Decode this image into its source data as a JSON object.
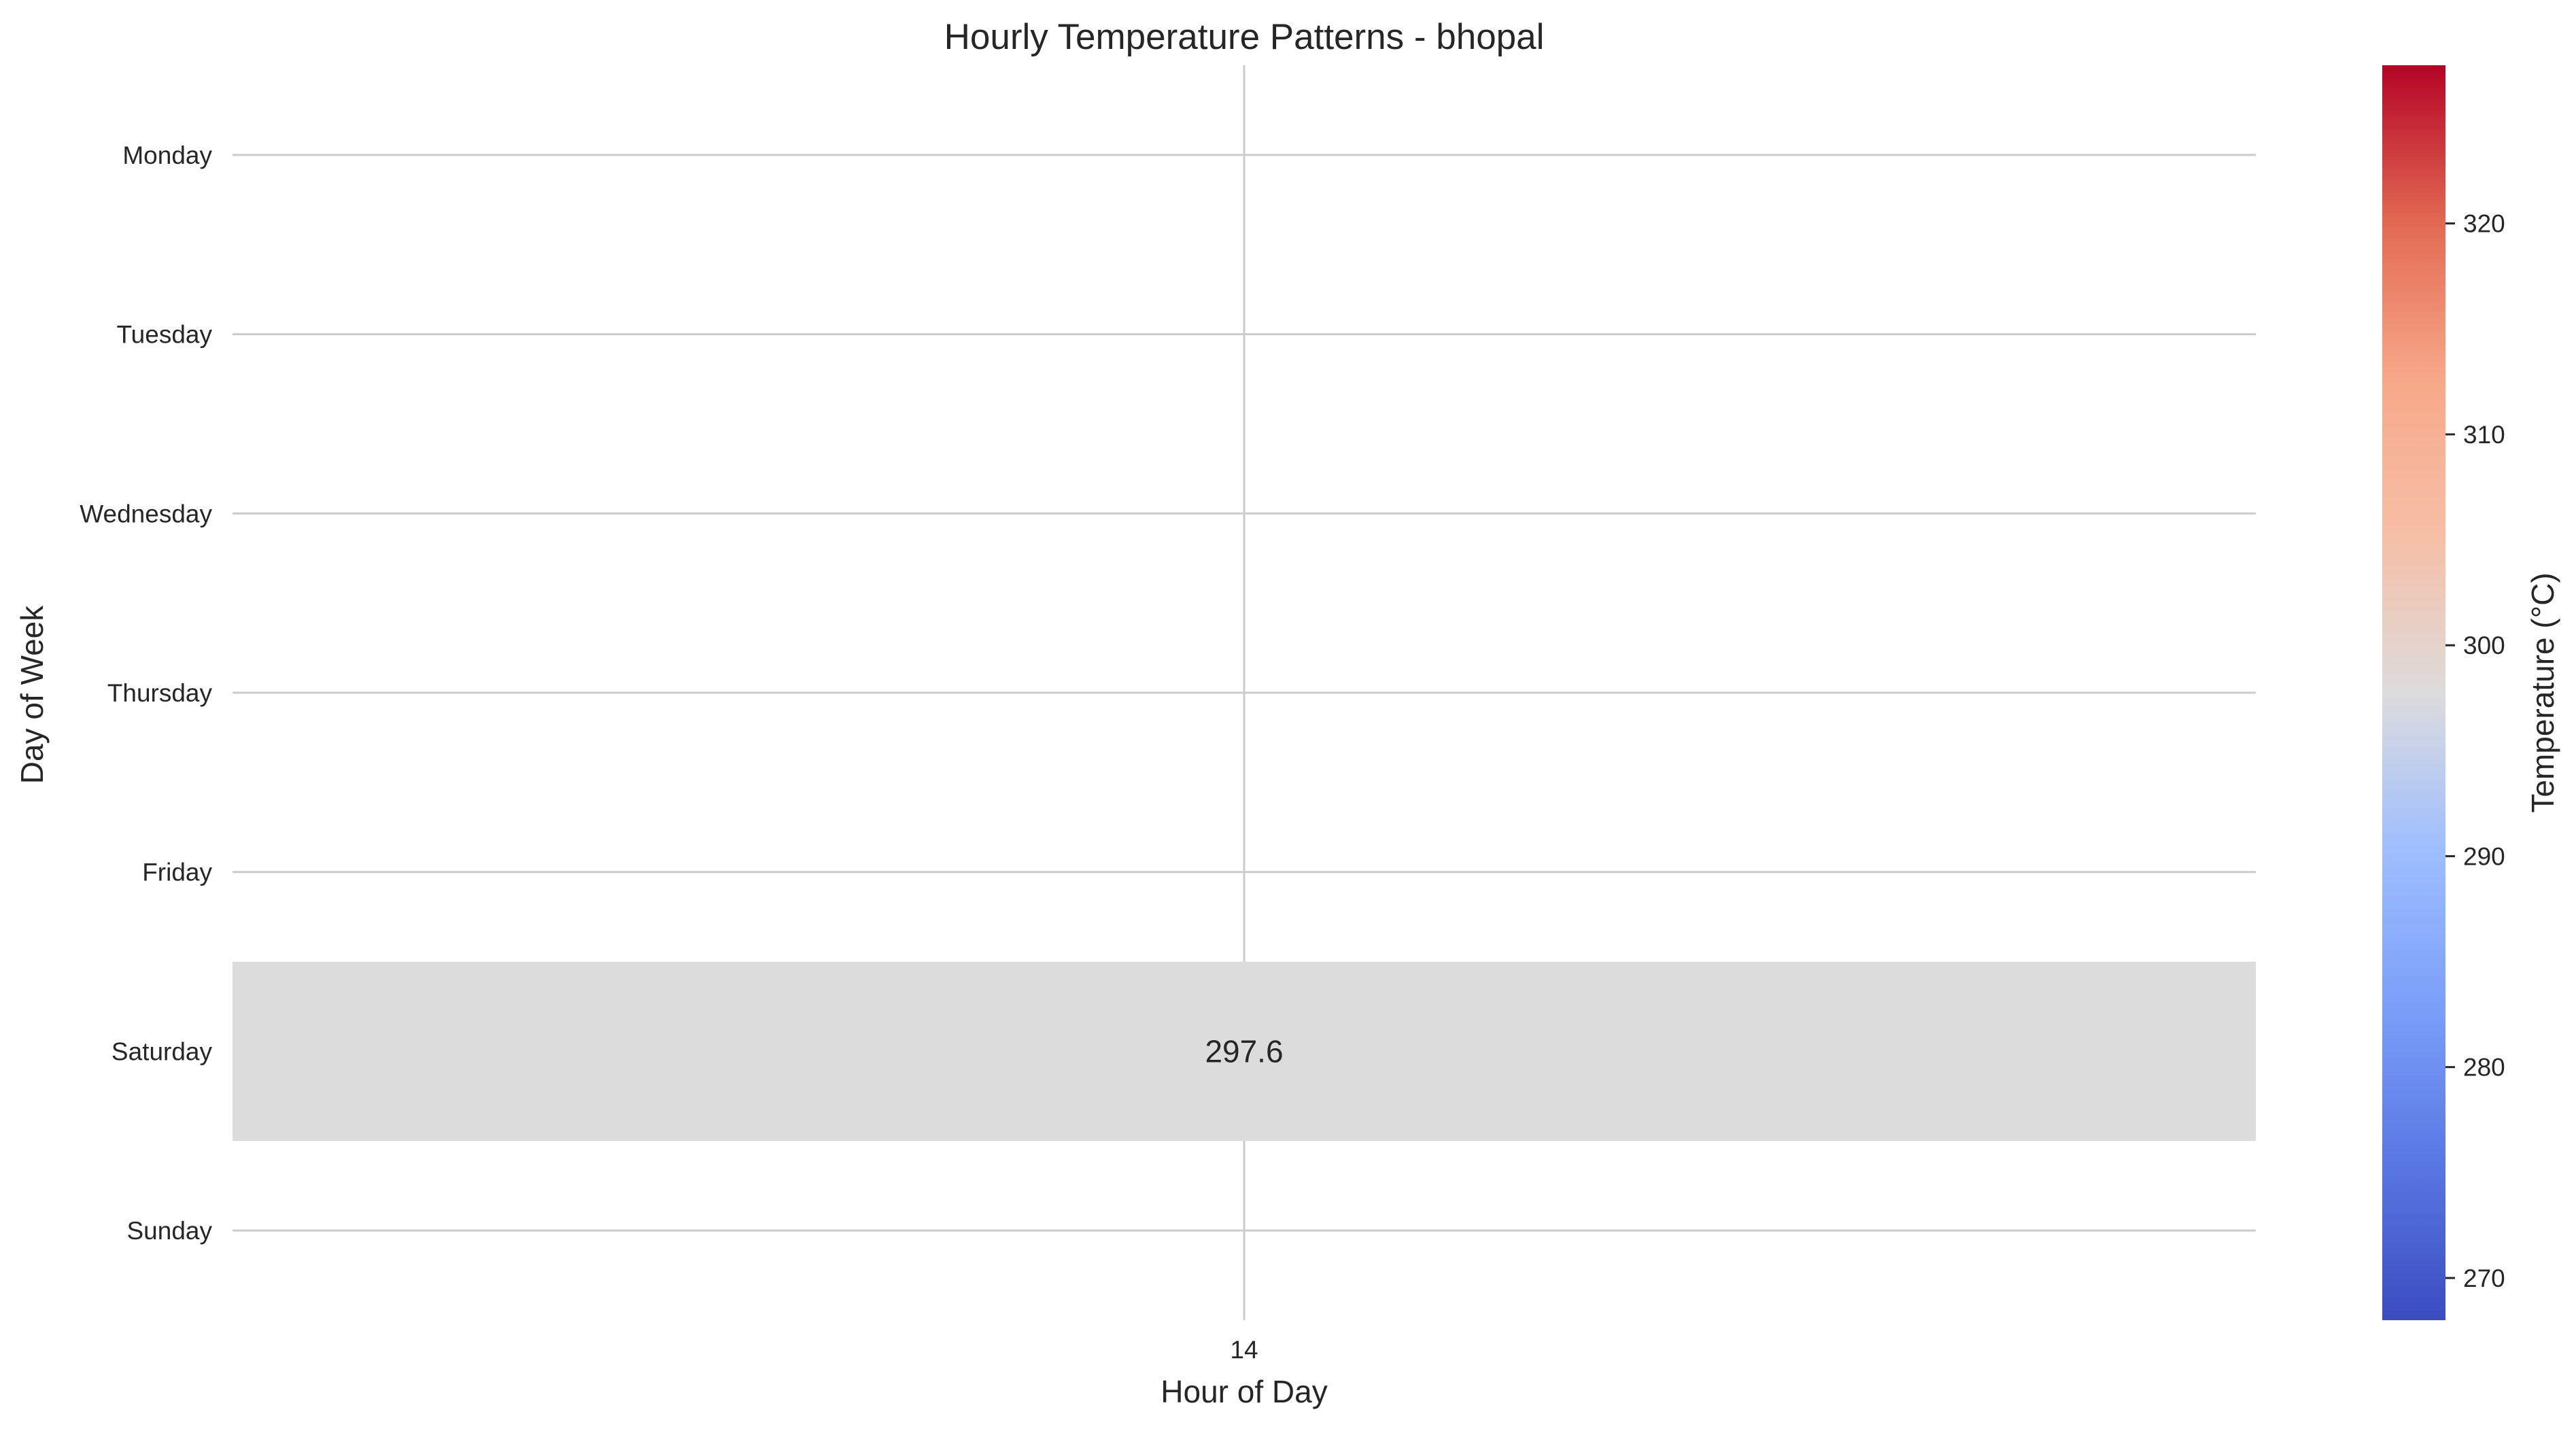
{
  "chart_data": {
    "type": "heatmap",
    "title": "Hourly Temperature Patterns - bhopal",
    "xlabel": "Hour of Day",
    "ylabel": "Day of Week",
    "x_categories": [
      "14"
    ],
    "y_categories": [
      "Monday",
      "Tuesday",
      "Wednesday",
      "Thursday",
      "Friday",
      "Saturday",
      "Sunday"
    ],
    "cells": [
      {
        "x": "14",
        "y": "Saturday",
        "value": 297.6,
        "label": "297.6"
      }
    ],
    "colorbar": {
      "label": "Temperature (°C)",
      "colormap": "coolwarm",
      "vmin": 268,
      "vmax": 327.5,
      "ticks": [
        270,
        280,
        290,
        300,
        310,
        320
      ],
      "tick_labels": [
        "270",
        "280",
        "290",
        "300",
        "310",
        "320"
      ]
    },
    "grid": true,
    "cell_color": "#dcdcdc"
  }
}
